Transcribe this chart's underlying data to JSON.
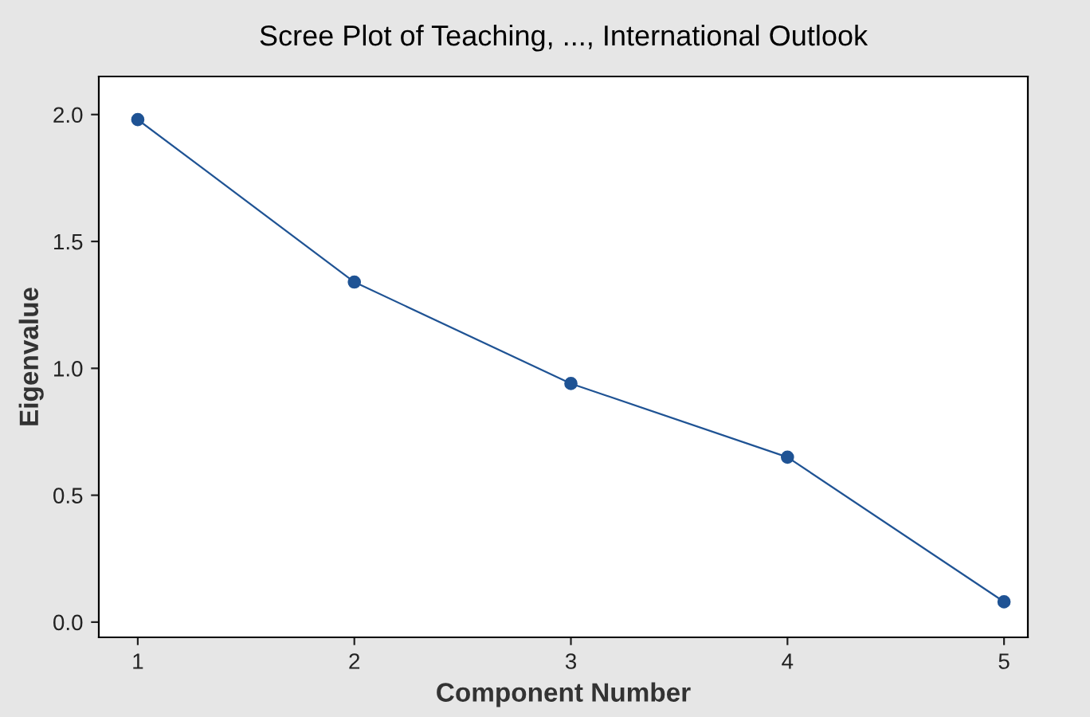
{
  "chart_data": {
    "type": "line",
    "title": "Scree Plot of Teaching, ..., International Outlook",
    "xlabel": "Component Number",
    "ylabel": "Eigenvalue",
    "x": [
      1,
      2,
      3,
      4,
      5
    ],
    "series": [
      {
        "color": "#1f5394",
        "values": [
          1.98,
          1.34,
          0.94,
          0.65,
          0.08
        ]
      }
    ],
    "xlim": [
      0.82,
      5.11
    ],
    "xticks": [
      1,
      2,
      3,
      4,
      5
    ],
    "ylim": [
      -0.06,
      2.15
    ],
    "yticks": [
      {
        "value": 0,
        "label": "0.0"
      },
      0.5,
      {
        "value": 1,
        "label": "1.0"
      },
      1.5,
      {
        "value": 2,
        "label": "2.0"
      }
    ],
    "marker": "circle",
    "line_style": "solid",
    "grid": false,
    "legend": false
  }
}
